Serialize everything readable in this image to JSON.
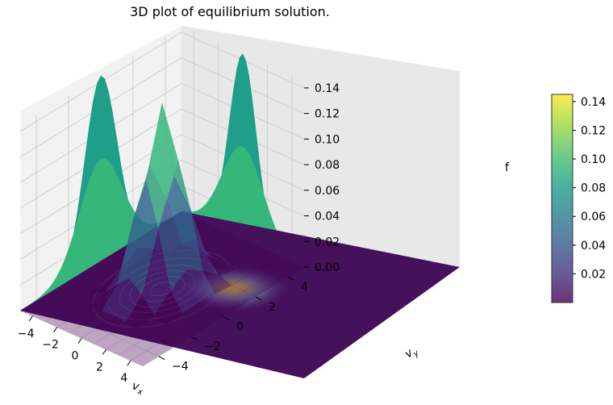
{
  "chart_data": {
    "type": "surface3d",
    "title": "3D plot of equilibrium solution.",
    "xlabel": "v_x",
    "ylabel": "v_y",
    "zlabel": "f",
    "x_ticks": [
      "−4",
      "−2",
      "0",
      "2",
      "4"
    ],
    "y_ticks": [
      "−4",
      "−2",
      "0",
      "2",
      "4"
    ],
    "z_ticks": [
      "0.00",
      "0.02",
      "0.04",
      "0.06",
      "0.08",
      "0.10",
      "0.12",
      "0.14"
    ],
    "xlim": [
      -5,
      5
    ],
    "ylim": [
      -5,
      5
    ],
    "zlim": [
      0,
      0.145
    ],
    "surface": {
      "function": "gaussian",
      "peak": 0.145,
      "center": [
        0,
        0
      ],
      "sigma": 1.05,
      "grid": [
        -5,
        -4,
        -3,
        -2,
        -1,
        0,
        1,
        2,
        3,
        4,
        5
      ],
      "alpha": 0.6
    },
    "projections": [
      "contour on z=0 plane",
      "marginal on left wall (x)",
      "marginal on back wall (y)"
    ],
    "colormap": "viridis",
    "colorbar": {
      "ticks": [
        "0.02",
        "0.04",
        "0.06",
        "0.08",
        "0.10",
        "0.12",
        "0.14"
      ],
      "tick_values": [
        0.02,
        0.04,
        0.06,
        0.08,
        0.1,
        0.12,
        0.14
      ],
      "range": [
        0,
        0.145
      ]
    },
    "colors": {
      "floor": "#45115a",
      "marginal_outer": "#1f9e89",
      "marginal_inner": "#35b779",
      "pane_left": "#f2f2f2",
      "pane_back": "#e8e8e8",
      "grid": "#cfcfcf"
    }
  }
}
